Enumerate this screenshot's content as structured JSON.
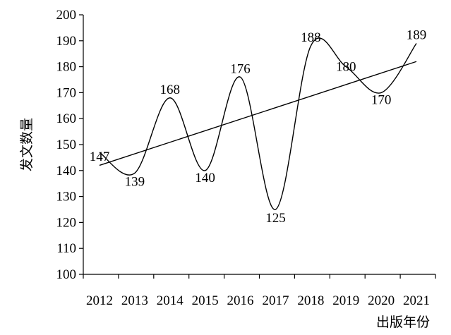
{
  "chart_data": {
    "type": "line",
    "categories": [
      "2012",
      "2013",
      "2014",
      "2015",
      "2016",
      "2017",
      "2018",
      "2019",
      "2020",
      "2021"
    ],
    "series": [
      {
        "values": [
          147,
          139,
          168,
          140,
          176,
          125,
          188,
          180,
          170,
          189
        ]
      }
    ],
    "trendline": {
      "start": 142,
      "end": 182
    },
    "data_labels": [
      "147",
      "139",
      "168",
      "140",
      "176",
      "125",
      "188",
      "180",
      "170",
      "189"
    ],
    "xlabel": "出版年份",
    "ylabel": "发文数量",
    "ylim": [
      100,
      200
    ],
    "yticks": [
      100,
      110,
      120,
      130,
      140,
      150,
      160,
      170,
      180,
      190,
      200
    ],
    "grid": false,
    "smooth": true
  }
}
